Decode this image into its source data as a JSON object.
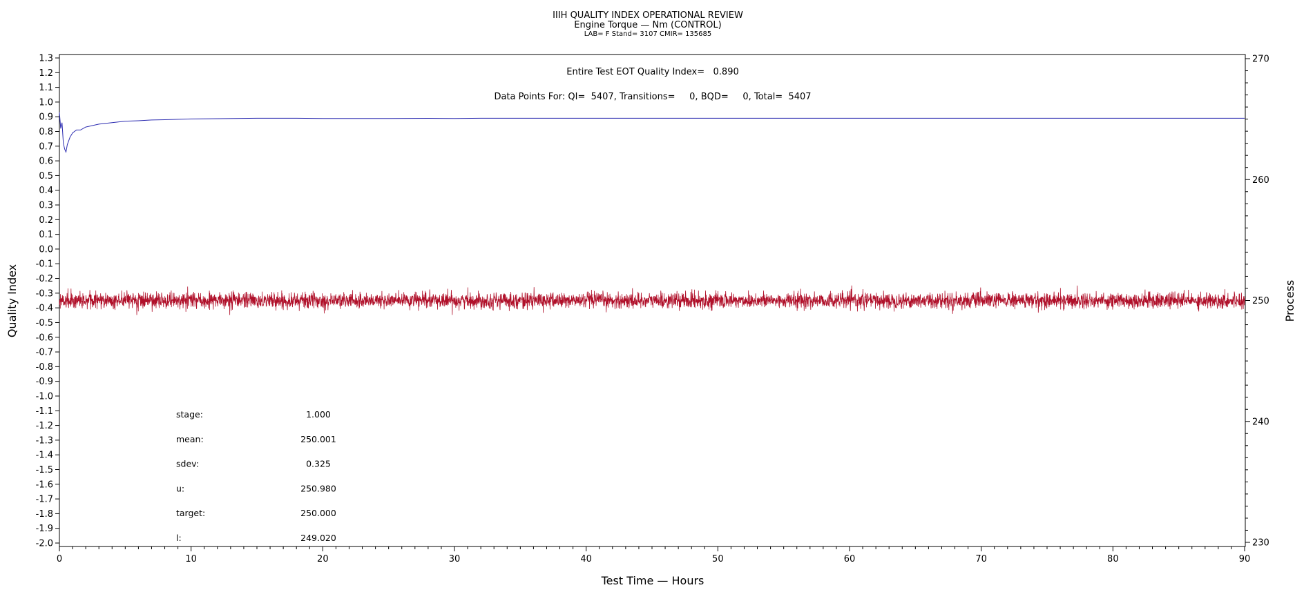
{
  "chart_data": {
    "type": "line",
    "title": "IIIH QUALITY INDEX OPERATIONAL REVIEW",
    "subtitle": "Engine Torque — Nm (CONTROL)",
    "subtitle2": "LAB= F Stand= 3107 CMIR= 135685",
    "xlabel": "Test Time — Hours",
    "ylabel": "Quality Index",
    "y2label": "Process",
    "xlim": [
      0,
      90
    ],
    "ylim": [
      -2.0,
      1.3
    ],
    "y2lim": [
      230,
      270
    ],
    "x_ticks": [
      "0",
      "10",
      "20",
      "30",
      "40",
      "50",
      "60",
      "70",
      "80",
      "90"
    ],
    "y_ticks": [
      "1.3",
      "1.2",
      "1.1",
      "1.0",
      "0.9",
      "0.8",
      "0.7",
      "0.6",
      "0.5",
      "0.4",
      "0.3",
      "0.2",
      "0.1",
      "0.0",
      "-0.1",
      "-0.2",
      "-0.3",
      "-0.4",
      "-0.5",
      "-0.6",
      "-0.7",
      "-0.8",
      "-0.9",
      "-1.0",
      "-1.1",
      "-1.2",
      "-1.3",
      "-1.4",
      "-1.5",
      "-1.6",
      "-1.7",
      "-1.8",
      "-1.9",
      "-2.0"
    ],
    "y2_ticks": [
      "270",
      "260",
      "250",
      "240",
      "230"
    ],
    "grid": false,
    "annotations": {
      "qi_line": "Entire Test EOT Quality Index=   0.890",
      "points_line": "Data Points For: QI=  5407, Transitions=     0, BQD=     0, Total=  5407"
    },
    "stats": [
      {
        "label": "stage:",
        "value": "1.000"
      },
      {
        "label": "mean:",
        "value": "250.001"
      },
      {
        "label": "sdev:",
        "value": "0.325"
      },
      {
        "label": "u:",
        "value": "250.980"
      },
      {
        "label": "target:",
        "value": "250.000"
      },
      {
        "label": "l:",
        "value": "249.020"
      }
    ],
    "series": [
      {
        "axis": "left",
        "color": "#2a2ab0",
        "x": [
          0,
          0.1,
          0.2,
          0.3,
          0.4,
          0.5,
          0.6,
          0.8,
          1.0,
          1.3,
          1.6,
          2.0,
          2.5,
          3,
          4,
          5,
          6,
          7,
          8,
          10,
          12,
          15,
          18,
          20,
          25,
          28,
          30,
          32,
          35,
          40,
          50,
          60,
          70,
          80,
          90
        ],
        "values": [
          0.93,
          0.82,
          0.86,
          0.72,
          0.68,
          0.66,
          0.71,
          0.76,
          0.79,
          0.81,
          0.81,
          0.83,
          0.84,
          0.85,
          0.86,
          0.87,
          0.873,
          0.878,
          0.88,
          0.885,
          0.887,
          0.89,
          0.89,
          0.888,
          0.888,
          0.889,
          0.888,
          0.89,
          0.89,
          0.89,
          0.89,
          0.89,
          0.89,
          0.89,
          0.89
        ]
      },
      {
        "axis": "right",
        "color": "#b0102a",
        "mean": 250.001,
        "sdev": 0.325,
        "n": 5407,
        "x_range": [
          0,
          90
        ]
      }
    ]
  }
}
